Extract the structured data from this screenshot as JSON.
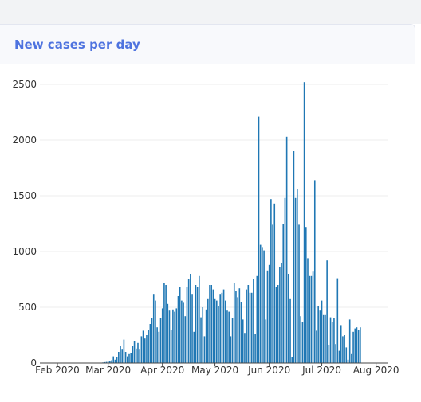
{
  "card": {
    "title": "New cases per day"
  },
  "colors": {
    "bar": "#1f77b4",
    "title": "#4e73df",
    "grid": "#eeeeee"
  },
  "chart_data": {
    "type": "bar",
    "title": "New cases per day",
    "xlabel": "",
    "ylabel": "",
    "ylim": [
      0,
      2650
    ],
    "xlim": [
      "2020-01-22",
      "2020-08-08"
    ],
    "grid": {
      "y": true,
      "x": false
    },
    "y_ticks": [
      0,
      500,
      1000,
      1500,
      2000,
      2500
    ],
    "x_ticks": [
      {
        "date": "2020-02-01",
        "label": "Feb 2020"
      },
      {
        "date": "2020-03-01",
        "label": "Mar 2020"
      },
      {
        "date": "2020-04-01",
        "label": "Apr 2020"
      },
      {
        "date": "2020-05-01",
        "label": "May 2020"
      },
      {
        "date": "2020-06-01",
        "label": "Jun 2020"
      },
      {
        "date": "2020-07-01",
        "label": "Jul 2020"
      },
      {
        "date": "2020-08-01",
        "label": "Aug 2020"
      }
    ],
    "dates": [
      "2020-01-22",
      "2020-01-23",
      "2020-01-24",
      "2020-01-25",
      "2020-01-26",
      "2020-01-27",
      "2020-01-28",
      "2020-01-29",
      "2020-01-30",
      "2020-01-31",
      "2020-02-01",
      "2020-02-02",
      "2020-02-03",
      "2020-02-04",
      "2020-02-05",
      "2020-02-06",
      "2020-02-07",
      "2020-02-08",
      "2020-02-09",
      "2020-02-10",
      "2020-02-11",
      "2020-02-12",
      "2020-02-13",
      "2020-02-14",
      "2020-02-15",
      "2020-02-16",
      "2020-02-17",
      "2020-02-18",
      "2020-02-19",
      "2020-02-20",
      "2020-02-21",
      "2020-02-22",
      "2020-02-23",
      "2020-02-24",
      "2020-02-25",
      "2020-02-26",
      "2020-02-27",
      "2020-02-28",
      "2020-02-29",
      "2020-03-01",
      "2020-03-02",
      "2020-03-03",
      "2020-03-04",
      "2020-03-05",
      "2020-03-06",
      "2020-03-07",
      "2020-03-08",
      "2020-03-09",
      "2020-03-10",
      "2020-03-11",
      "2020-03-12",
      "2020-03-13",
      "2020-03-14",
      "2020-03-15",
      "2020-03-16",
      "2020-03-17",
      "2020-03-18",
      "2020-03-19",
      "2020-03-20",
      "2020-03-21",
      "2020-03-22",
      "2020-03-23",
      "2020-03-24",
      "2020-03-25",
      "2020-03-26",
      "2020-03-27",
      "2020-03-28",
      "2020-03-29",
      "2020-03-30",
      "2020-03-31",
      "2020-04-01",
      "2020-04-02",
      "2020-04-03",
      "2020-04-04",
      "2020-04-05",
      "2020-04-06",
      "2020-04-07",
      "2020-04-08",
      "2020-04-09",
      "2020-04-10",
      "2020-04-11",
      "2020-04-12",
      "2020-04-13",
      "2020-04-14",
      "2020-04-15",
      "2020-04-16",
      "2020-04-17",
      "2020-04-18",
      "2020-04-19",
      "2020-04-20",
      "2020-04-21",
      "2020-04-22",
      "2020-04-23",
      "2020-04-24",
      "2020-04-25",
      "2020-04-26",
      "2020-04-27",
      "2020-04-28",
      "2020-04-29",
      "2020-04-30",
      "2020-05-01",
      "2020-05-02",
      "2020-05-03",
      "2020-05-04",
      "2020-05-05",
      "2020-05-06",
      "2020-05-07",
      "2020-05-08",
      "2020-05-09",
      "2020-05-10",
      "2020-05-11",
      "2020-05-12",
      "2020-05-13",
      "2020-05-14",
      "2020-05-15",
      "2020-05-16",
      "2020-05-17",
      "2020-05-18",
      "2020-05-19",
      "2020-05-20",
      "2020-05-21",
      "2020-05-22",
      "2020-05-23",
      "2020-05-24",
      "2020-05-25",
      "2020-05-26",
      "2020-05-27",
      "2020-05-28",
      "2020-05-29",
      "2020-05-30",
      "2020-05-31",
      "2020-06-01",
      "2020-06-02",
      "2020-06-03",
      "2020-06-04",
      "2020-06-05",
      "2020-06-06",
      "2020-06-07",
      "2020-06-08",
      "2020-06-09",
      "2020-06-10",
      "2020-06-11",
      "2020-06-12",
      "2020-06-13",
      "2020-06-14",
      "2020-06-15",
      "2020-06-16",
      "2020-06-17",
      "2020-06-18",
      "2020-06-19",
      "2020-06-20",
      "2020-06-21",
      "2020-06-22",
      "2020-06-23",
      "2020-06-24",
      "2020-06-25",
      "2020-06-26",
      "2020-06-27",
      "2020-06-28",
      "2020-06-29",
      "2020-06-30",
      "2020-07-01",
      "2020-07-02",
      "2020-07-03",
      "2020-07-04",
      "2020-07-05",
      "2020-07-06",
      "2020-07-07",
      "2020-07-08",
      "2020-07-09",
      "2020-07-10",
      "2020-07-11",
      "2020-07-12",
      "2020-07-13",
      "2020-07-14",
      "2020-07-15",
      "2020-07-16",
      "2020-07-17",
      "2020-07-18",
      "2020-07-19",
      "2020-07-20",
      "2020-07-21",
      "2020-07-22",
      "2020-07-23",
      "2020-07-24",
      "2020-07-25",
      "2020-07-26",
      "2020-07-27",
      "2020-07-28",
      "2020-07-29",
      "2020-07-30",
      "2020-07-31",
      "2020-08-01",
      "2020-08-02",
      "2020-08-03",
      "2020-08-04",
      "2020-08-05"
    ],
    "values": [
      0,
      0,
      0,
      0,
      0,
      0,
      0,
      0,
      0,
      0,
      0,
      0,
      0,
      0,
      0,
      0,
      0,
      0,
      0,
      0,
      0,
      0,
      0,
      0,
      0,
      0,
      0,
      0,
      0,
      0,
      0,
      0,
      0,
      0,
      0,
      0,
      5,
      8,
      10,
      14,
      18,
      25,
      60,
      30,
      50,
      100,
      150,
      120,
      210,
      100,
      60,
      80,
      90,
      150,
      200,
      130,
      180,
      120,
      240,
      290,
      220,
      250,
      300,
      350,
      400,
      620,
      560,
      320,
      280,
      400,
      490,
      720,
      700,
      530,
      470,
      300,
      480,
      460,
      490,
      600,
      680,
      560,
      540,
      420,
      680,
      750,
      800,
      620,
      280,
      700,
      680,
      780,
      410,
      500,
      240,
      480,
      580,
      700,
      700,
      660,
      580,
      560,
      510,
      620,
      630,
      660,
      560,
      470,
      460,
      240,
      400,
      720,
      650,
      590,
      670,
      550,
      390,
      270,
      660,
      700,
      630,
      630,
      750,
      260,
      780,
      2210,
      1060,
      1040,
      1010,
      390,
      830,
      880,
      1470,
      1240,
      1430,
      680,
      700,
      860,
      900,
      1250,
      1480,
      2030,
      800,
      580,
      50,
      1900,
      1480,
      1560,
      1240,
      420,
      370,
      2520,
      1220,
      940,
      780,
      780,
      820,
      1640,
      290,
      510,
      470,
      560,
      430,
      430,
      920,
      160,
      410,
      370,
      400,
      170,
      760,
      110,
      340,
      240,
      250,
      140,
      30,
      390,
      80,
      280,
      310,
      320,
      300,
      320,
      0,
      0,
      0,
      0,
      0,
      0,
      0,
      0,
      0,
      0,
      0,
      0,
      0
    ]
  }
}
